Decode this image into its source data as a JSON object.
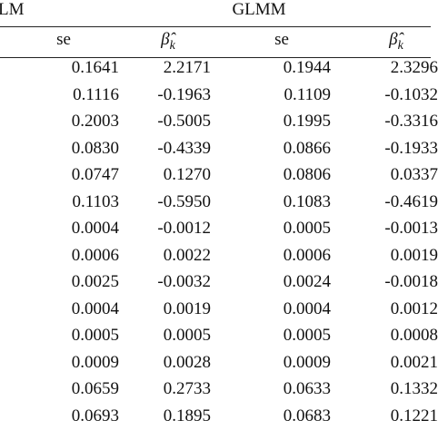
{
  "table": {
    "groups": [
      "LM",
      "GLMM"
    ],
    "columns": [
      {
        "text": "se"
      },
      {
        "text": "β̂",
        "sub": "k"
      },
      {
        "text": "se"
      },
      {
        "text": "β̂",
        "sub": "k"
      }
    ],
    "rows": [
      [
        "0.1641",
        "2.2171",
        "0.1944",
        "2.3296"
      ],
      [
        "0.1116",
        "-0.1963",
        "0.1109",
        "-0.1032"
      ],
      [
        "0.2003",
        "-0.5005",
        "0.1995",
        "-0.3316"
      ],
      [
        "0.0830",
        "-0.4339",
        "0.0866",
        "-0.1933"
      ],
      [
        "0.0747",
        "0.1270",
        "0.0806",
        "0.0337"
      ],
      [
        "0.1103",
        "-0.5950",
        "0.1083",
        "-0.4619"
      ],
      [
        "0.0004",
        "-0.0012",
        "0.0005",
        "-0.0013"
      ],
      [
        "0.0006",
        "0.0022",
        "0.0006",
        "0.0019"
      ],
      [
        "0.0025",
        "-0.0032",
        "0.0024",
        "-0.0018"
      ],
      [
        "0.0004",
        "0.0019",
        "0.0004",
        "0.0012"
      ],
      [
        "0.0005",
        "0.0005",
        "0.0005",
        "0.0008"
      ],
      [
        "0.0009",
        "0.0028",
        "0.0009",
        "0.0021"
      ],
      [
        "0.0659",
        "0.2733",
        "0.0633",
        "0.1332"
      ],
      [
        "0.0693",
        "0.1895",
        "0.0683",
        "0.1221"
      ]
    ]
  }
}
